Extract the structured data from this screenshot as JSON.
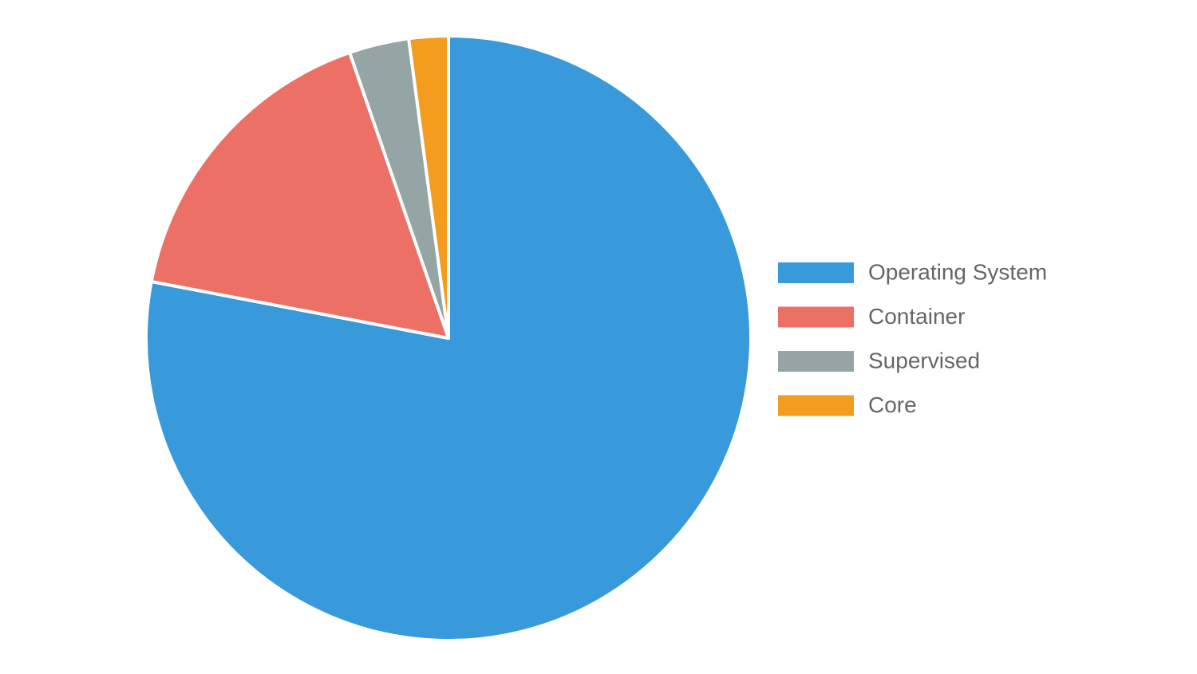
{
  "chart_data": {
    "type": "pie",
    "categories": [
      "Operating System",
      "Container",
      "Supervised",
      "Core"
    ],
    "values": [
      78,
      16.7,
      3.2,
      2.1
    ],
    "colors": [
      "#3899db",
      "#ec7065",
      "#95a5a6",
      "#f39c1e"
    ],
    "legend": "right"
  }
}
